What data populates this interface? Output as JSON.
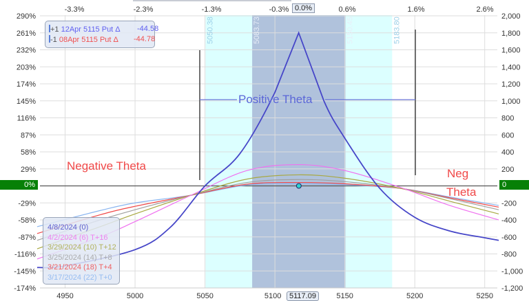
{
  "chart_data": {
    "type": "line",
    "xlabel": "",
    "ylabel": "",
    "x_range": [
      4932,
      5259
    ],
    "y_range_right": [
      -1200,
      2000
    ],
    "y_range_left_pct": [
      -174,
      290
    ],
    "grid": true,
    "x_ticks": [
      "4950",
      "5000",
      "5050",
      "5100",
      "5150",
      "5200",
      "5250"
    ],
    "top_ticks": [
      "-3.3%",
      "-2.3%",
      "-1.3%",
      "-0.3%",
      "0.6%",
      "1.6%",
      "2.6%"
    ],
    "top_current": "0.0%",
    "left_ticks": [
      "290%",
      "261%",
      "232%",
      "203%",
      "174%",
      "145%",
      "116%",
      "87%",
      "58%",
      "29%",
      "0%",
      "-29%",
      "-58%",
      "-87%",
      "-116%",
      "-145%",
      "-174%"
    ],
    "right_ticks": [
      "2,000",
      "1,800",
      "1,600",
      "1,400",
      "1,200",
      "1,000",
      "800",
      "600",
      "400",
      "200",
      "0",
      "-200",
      "-400",
      "-600",
      "-800",
      "-1,000",
      "-1,200"
    ],
    "current_price": "5117.09",
    "bands": {
      "outer": {
        "low": "5050.38",
        "high": "5183.80",
        "color": "#dcffff"
      },
      "inner": {
        "low": "5083.73",
        "high": "5150.45",
        "color": "#b0c2dc"
      }
    },
    "series": [
      {
        "name": "3/17/2024 (22) T+0",
        "color": "#88b4f0",
        "x": [
          4930,
          4975,
          5000,
          5040,
          5080,
          5117,
          5150,
          5190,
          5225,
          5260
        ],
        "y": [
          -480,
          -290,
          -200,
          -110,
          10,
          25,
          15,
          -30,
          -130,
          -230
        ]
      },
      {
        "name": "3/21/2024 (18) T+4",
        "color": "#f04848",
        "x": [
          4930,
          4975,
          5000,
          5040,
          5080,
          5117,
          5150,
          5190,
          5225,
          5260
        ],
        "y": [
          -560,
          -340,
          -240,
          -110,
          20,
          40,
          25,
          -30,
          -140,
          -250
        ]
      },
      {
        "name": "3/25/2024 (14) T+8",
        "color": "#a0a0a0",
        "x": [
          4930,
          4975,
          5000,
          5040,
          5080,
          5117,
          5150,
          5190,
          5225,
          5260
        ],
        "y": [
          -640,
          -400,
          -280,
          -110,
          40,
          75,
          50,
          -30,
          -150,
          -280
        ]
      },
      {
        "name": "3/29/2024 (10) T+12",
        "color": "#a8a840",
        "x": [
          4930,
          4975,
          5000,
          5040,
          5080,
          5117,
          5150,
          5190,
          5225,
          5260
        ],
        "y": [
          -740,
          -480,
          -330,
          -110,
          80,
          130,
          90,
          -30,
          -180,
          -330
        ]
      },
      {
        "name": "4/2/2024 (6) T+16",
        "color": "#f070f0",
        "x": [
          4930,
          4975,
          5000,
          5040,
          5080,
          5117,
          5150,
          5190,
          5225,
          5260
        ],
        "y": [
          -860,
          -600,
          -420,
          -110,
          180,
          250,
          180,
          -20,
          -230,
          -400
        ]
      },
      {
        "name": "4/8/2024 (0)",
        "color": "#4646c8",
        "x": [
          4930,
          4950,
          5000,
          5025,
          5050,
          5075,
          5100,
          5117,
          5135,
          5150,
          5175,
          5200,
          5225,
          5250,
          5260
        ],
        "y": [
          -960,
          -940,
          -750,
          -490,
          0,
          380,
          1100,
          1800,
          1000,
          560,
          -30,
          -370,
          -530,
          -610,
          -640
        ]
      }
    ],
    "annotations": [
      "Negative Theta",
      "Positive Theta",
      "Neg",
      "Theta"
    ]
  },
  "position_legend": {
    "rows": [
      {
        "qty": "+1",
        "desc": "12Apr 5115 Put Δ",
        "delta": "-44.58",
        "color": "#6060f0"
      },
      {
        "qty": "-1",
        "desc": "08Apr 5115 Put Δ",
        "delta": "-44.78",
        "color": "#f05050"
      }
    ]
  },
  "zero_tags": {
    "left": "0%",
    "right": "0"
  }
}
